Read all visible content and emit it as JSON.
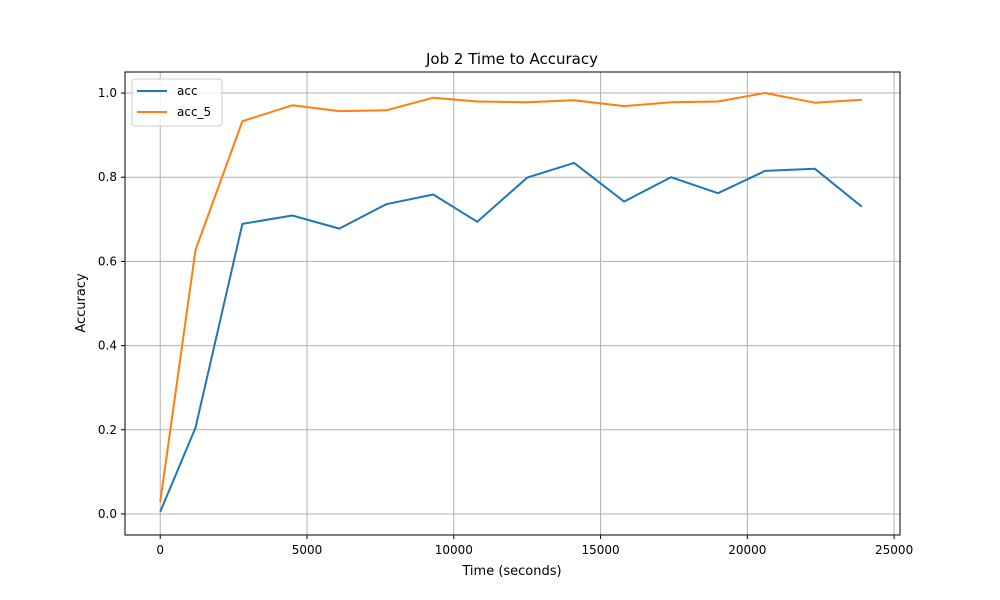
{
  "chart_data": {
    "type": "line",
    "title": "Job 2 Time to Accuracy",
    "xlabel": "Time (seconds)",
    "ylabel": "Accuracy",
    "xlim": [
      -1200,
      25200
    ],
    "ylim": [
      -0.05,
      1.05
    ],
    "x_ticks": [
      0,
      5000,
      10000,
      15000,
      20000,
      25000
    ],
    "x_tick_labels": [
      "0",
      "5000",
      "10000",
      "15000",
      "20000",
      "25000"
    ],
    "y_ticks": [
      0.0,
      0.2,
      0.4,
      0.6,
      0.8,
      1.0
    ],
    "y_tick_labels": [
      "0.0",
      "0.2",
      "0.4",
      "0.6",
      "0.8",
      "1.0"
    ],
    "grid": true,
    "legend_position": "top-left",
    "series": [
      {
        "name": "acc",
        "color": "#1f77b4",
        "x": [
          0,
          1200,
          2800,
          4500,
          6100,
          7700,
          9300,
          10800,
          12500,
          14100,
          15800,
          17400,
          19000,
          20600,
          22300,
          23900
        ],
        "y": [
          0.005,
          0.205,
          0.689,
          0.709,
          0.678,
          0.736,
          0.759,
          0.694,
          0.799,
          0.834,
          0.742,
          0.8,
          0.762,
          0.815,
          0.82,
          0.73
        ]
      },
      {
        "name": "acc_5",
        "color": "#ff7f0e",
        "x": [
          0,
          1200,
          2800,
          4500,
          6100,
          7700,
          9300,
          10800,
          12500,
          14100,
          15800,
          17400,
          19000,
          20600,
          22300,
          23900
        ],
        "y": [
          0.028,
          0.627,
          0.933,
          0.971,
          0.957,
          0.959,
          0.989,
          0.98,
          0.978,
          0.983,
          0.969,
          0.978,
          0.98,
          1.0,
          0.977,
          0.984
        ]
      }
    ]
  }
}
